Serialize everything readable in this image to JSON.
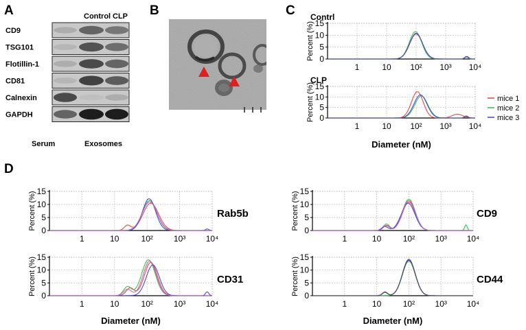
{
  "panels": {
    "A": {
      "letter": "A",
      "lane_headers": [
        "Control",
        "CLP"
      ],
      "proteins": [
        "CD9",
        "TSG101",
        "Flotillin-1",
        "CD81",
        "Calnexin",
        "GAPDH"
      ],
      "sample_labels": [
        "Serum",
        "Exosomes"
      ]
    },
    "B": {
      "letter": "B"
    },
    "C": {
      "letter": "C"
    },
    "D": {
      "letter": "D"
    }
  },
  "chart_data": [
    {
      "id": "C1",
      "type": "line",
      "title": "Contrl",
      "xscale": "log",
      "xlim": [
        0.1,
        10000
      ],
      "xticks": [
        "1",
        "10",
        "10²",
        "10³",
        "10⁴"
      ],
      "ylabel": "Percent (%)",
      "ylim": [
        0,
        15
      ],
      "yticks": [
        0,
        5,
        10,
        15
      ],
      "xlabel": "",
      "grid": true,
      "series": [
        {
          "color": "#e8403c",
          "peaks": [
            [
              100,
              10.5,
              0.22
            ],
            [
              5000,
              1.0,
              0.06
            ]
          ]
        },
        {
          "color": "#34c03c",
          "peaks": [
            [
              95,
              11.5,
              0.21
            ],
            [
              5000,
              0.8,
              0.06
            ]
          ]
        },
        {
          "color": "#4040d8",
          "peaks": [
            [
              100,
              10.8,
              0.22
            ],
            [
              5200,
              1.1,
              0.06
            ]
          ]
        }
      ]
    },
    {
      "id": "C2",
      "type": "line",
      "title": "CLP",
      "xscale": "log",
      "xlim": [
        0.1,
        10000
      ],
      "xticks": [
        "1",
        "10",
        "10²",
        "10³",
        "10⁴"
      ],
      "ylabel": "Percent (%)",
      "ylim": [
        0,
        15
      ],
      "yticks": [
        0,
        5,
        10,
        15
      ],
      "xlabel": "Diameter (nM)",
      "grid": true,
      "legend": {
        "placement": "right",
        "entries": [
          "mice 1",
          "mice 2",
          "mice 3"
        ]
      },
      "series": [
        {
          "name": "mice 1",
          "color": "#e8403c",
          "peaks": [
            [
              110,
              12.5,
              0.2
            ],
            [
              2500,
              1.8,
              0.18
            ]
          ]
        },
        {
          "name": "mice 2",
          "color": "#34c03c",
          "peaks": [
            [
              150,
              10.5,
              0.22
            ],
            [
              5000,
              1.0,
              0.06
            ]
          ]
        },
        {
          "name": "mice 3",
          "color": "#4040d8",
          "peaks": [
            [
              140,
              11.0,
              0.22
            ],
            [
              5000,
              0.9,
              0.06
            ]
          ]
        }
      ]
    },
    {
      "id": "D1",
      "type": "line",
      "label": "Rab5b",
      "xscale": "log",
      "xlim": [
        0.1,
        10000
      ],
      "xticks": [
        "1",
        "10",
        "10²",
        "10³",
        "10⁴"
      ],
      "ylabel": "Percent (%)",
      "ylim": [
        0,
        15
      ],
      "yticks": [
        0,
        5,
        10,
        15
      ],
      "xlabel": "",
      "grid": true,
      "series": [
        {
          "color": "#e8403c",
          "peaks": [
            [
              130,
              10.5,
              0.24
            ],
            [
              25,
              2.0,
              0.1
            ]
          ]
        },
        {
          "color": "#34c03c",
          "peaks": [
            [
              120,
              11.5,
              0.22
            ]
          ]
        },
        {
          "color": "#4040d8",
          "peaks": [
            [
              115,
              12.2,
              0.2
            ],
            [
              7000,
              0.6,
              0.05
            ]
          ]
        },
        {
          "color": "#c060c8",
          "peaks": [
            [
              120,
              11.0,
              0.23
            ]
          ]
        }
      ]
    },
    {
      "id": "D2",
      "type": "line",
      "label": "CD9",
      "xscale": "log",
      "xlim": [
        0.1,
        10000
      ],
      "xticks": [
        "1",
        "10",
        "10²",
        "10³",
        "10⁴"
      ],
      "ylabel": "Percent (%)",
      "ylim": [
        0,
        15
      ],
      "yticks": [
        0,
        5,
        10,
        15
      ],
      "xlabel": "",
      "grid": true,
      "series": [
        {
          "color": "#e8403c",
          "peaks": [
            [
              100,
              11.0,
              0.2
            ],
            [
              20,
              2.0,
              0.1
            ]
          ]
        },
        {
          "color": "#34c03c",
          "peaks": [
            [
              100,
              12.0,
              0.2
            ],
            [
              20,
              2.5,
              0.1
            ],
            [
              6000,
              2.2,
              0.04
            ]
          ]
        },
        {
          "color": "#4040d8",
          "peaks": [
            [
              95,
              10.5,
              0.21
            ],
            [
              18,
              1.5,
              0.1
            ]
          ]
        },
        {
          "color": "#c060c8",
          "peaks": [
            [
              100,
              11.5,
              0.2
            ],
            [
              20,
              1.8,
              0.1
            ]
          ]
        }
      ]
    },
    {
      "id": "D3",
      "type": "line",
      "label": "CD31",
      "xscale": "log",
      "xlim": [
        0.1,
        10000
      ],
      "xticks": [
        "1",
        "10",
        "10²",
        "10³",
        "10⁴"
      ],
      "ylabel": "Percent (%)",
      "ylim": [
        0,
        15
      ],
      "yticks": [
        0,
        5,
        10,
        15
      ],
      "xlabel": "Diameter (nM)",
      "grid": true,
      "series": [
        {
          "color": "#e8403c",
          "peaks": [
            [
              130,
              13.0,
              0.2
            ],
            [
              30,
              3.0,
              0.12
            ]
          ]
        },
        {
          "color": "#34c03c",
          "peaks": [
            [
              110,
              14.0,
              0.21
            ],
            [
              25,
              3.5,
              0.12
            ]
          ]
        },
        {
          "color": "#4040d8",
          "peaks": [
            [
              150,
              12.0,
              0.2
            ],
            [
              7000,
              1.5,
              0.05
            ]
          ]
        },
        {
          "color": "#c060c8",
          "peaks": [
            [
              120,
              13.5,
              0.2
            ],
            [
              25,
              2.5,
              0.12
            ]
          ]
        }
      ]
    },
    {
      "id": "D4",
      "type": "line",
      "label": "CD44",
      "xscale": "log",
      "xlim": [
        0.1,
        10000
      ],
      "xticks": [
        "1",
        "10",
        "10²",
        "10³",
        "10⁴"
      ],
      "ylabel": "Percent (%)",
      "ylim": [
        0,
        15
      ],
      "yticks": [
        0,
        5,
        10,
        15
      ],
      "xlabel": "Diameter (nM)",
      "grid": true,
      "series": [
        {
          "color": "#e8403c",
          "peaks": [
            [
              100,
              14.0,
              0.2
            ],
            [
              18,
              1.5,
              0.08
            ]
          ]
        },
        {
          "color": "#34c03c",
          "peaks": [
            [
              100,
              13.5,
              0.2
            ]
          ]
        },
        {
          "color": "#4040d8",
          "peaks": [
            [
              100,
              14.2,
              0.2
            ],
            [
              18,
              1.3,
              0.08
            ]
          ]
        },
        {
          "color": "#505050",
          "peaks": [
            [
              100,
              13.8,
              0.2
            ],
            [
              18,
              1.4,
              0.08
            ]
          ]
        }
      ]
    }
  ]
}
